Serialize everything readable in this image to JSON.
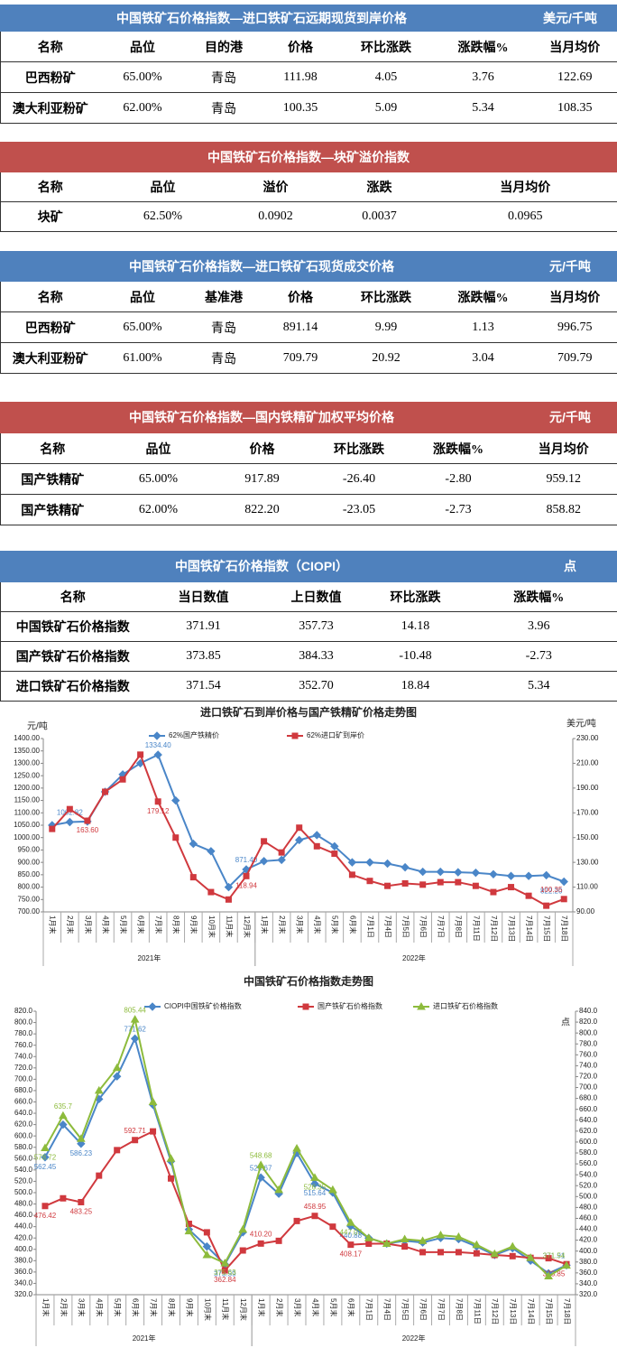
{
  "tables": [
    {
      "title": "中国铁矿石价格指数—进口铁矿石远期现货到岸价格",
      "unit": "美元/千吨",
      "color": "#4f81bd",
      "columns": [
        "名称",
        "品位",
        "目的港",
        "价格",
        "环比涨跌",
        "涨跌幅%",
        "当月均价"
      ],
      "rows": [
        [
          "巴西粉矿",
          "65.00%",
          "青岛",
          "111.98",
          "4.05",
          "3.76",
          "122.69"
        ],
        [
          "澳大利亚粉矿",
          "62.00%",
          "青岛",
          "100.35",
          "5.09",
          "5.34",
          "108.35"
        ]
      ]
    },
    {
      "title": "中国铁矿石价格指数—块矿溢价指数",
      "color": "#c0504d",
      "columns": [
        "名称",
        "品位",
        "溢价",
        "涨跌",
        "当月均价"
      ],
      "rows": [
        [
          "块矿",
          "62.50%",
          "0.0902",
          "0.0037",
          "0.0965"
        ]
      ]
    },
    {
      "title": "中国铁矿石价格指数—进口铁矿石现货成交价格",
      "unit": "元/千吨",
      "color": "#4f81bd",
      "columns": [
        "名称",
        "品位",
        "基准港",
        "价格",
        "环比涨跌",
        "涨跌幅%",
        "当月均价"
      ],
      "rows": [
        [
          "巴西粉矿",
          "65.00%",
          "青岛",
          "891.14",
          "9.99",
          "1.13",
          "996.75"
        ],
        [
          "澳大利亚粉矿",
          "61.00%",
          "青岛",
          "709.79",
          "20.92",
          "3.04",
          "709.79"
        ]
      ]
    },
    {
      "title": "中国铁矿石价格指数—国内铁精矿加权平均价格",
      "unit": "元/千吨",
      "color": "#c0504d",
      "columns": [
        "名称",
        "品位",
        "价格",
        "环比涨跌",
        "涨跌幅%",
        "当月均价"
      ],
      "rows": [
        [
          "国产铁精矿",
          "65.00%",
          "917.89",
          "-26.40",
          "-2.80",
          "959.12"
        ],
        [
          "国产铁精矿",
          "62.00%",
          "822.20",
          "-23.05",
          "-2.73",
          "858.82"
        ]
      ]
    },
    {
      "title": "中国铁矿石价格指数（CIOPI）",
      "unit": "点",
      "color": "#4f81bd",
      "columns": [
        "名称",
        "当日数值",
        "上日数值",
        "环比涨跌",
        "涨跌幅%"
      ],
      "rows": [
        [
          "中国铁矿石价格指数",
          "371.91",
          "357.73",
          "14.18",
          "3.96"
        ],
        [
          "国产铁矿石价格指数",
          "373.85",
          "384.33",
          "-10.48",
          "-2.73"
        ],
        [
          "进口铁矿石价格指数",
          "371.54",
          "352.70",
          "18.84",
          "5.34"
        ]
      ]
    }
  ],
  "chart_data": [
    {
      "type": "line",
      "title": "进口铁矿石到岸价格与国产铁精矿价格走势图",
      "y_label": "元/吨",
      "y2_label": "美元/吨",
      "categories": [
        "1月末",
        "2月末",
        "3月末",
        "4月末",
        "5月末",
        "6月末",
        "7月末",
        "8月末",
        "9月末",
        "10月末",
        "11月末",
        "12月末",
        "1月末",
        "2月末",
        "3月末",
        "4月末",
        "5月末",
        "6月末",
        "7月1日",
        "7月4日",
        "7月5日",
        "7月6日",
        "7月7日",
        "7月8日",
        "7月11日",
        "7月12日",
        "7月13日",
        "7月14日",
        "7月15日",
        "7月18日"
      ],
      "groups": [
        {
          "name": "2021年",
          "count": 12
        },
        {
          "name": "2022年",
          "count": 18
        }
      ],
      "series": [
        {
          "name": "62%国产铁精价",
          "color": "#4a86c8",
          "marker": "diamond",
          "axis": "y",
          "values": [
            1050,
            1062.82,
            1065,
            1185,
            1255,
            1300,
            1334.4,
            1150,
            975,
            945,
            800,
            871.4,
            905,
            910,
            990,
            1010,
            965,
            900,
            900,
            895,
            880,
            862,
            862,
            860,
            858,
            852,
            845,
            845,
            848,
            822.2
          ],
          "value_labels": [
            null,
            "1062.82",
            null,
            null,
            null,
            null,
            "1334.40",
            null,
            null,
            null,
            null,
            "871.40",
            null,
            null,
            null,
            null,
            null,
            null,
            null,
            null,
            null,
            null,
            null,
            null,
            null,
            null,
            null,
            null,
            null,
            "822.20"
          ]
        },
        {
          "name": "62%进口矿到岸价",
          "color": "#d0393e",
          "marker": "square",
          "axis": "y2",
          "values": [
            157,
            173,
            163.6,
            187,
            197,
            217,
            179.12,
            150,
            118,
            106,
            100,
            118.94,
            147,
            138,
            158,
            143,
            137,
            120,
            115,
            111,
            113,
            112,
            114,
            114,
            111,
            106,
            110,
            103,
            95,
            100.35
          ],
          "value_labels": [
            null,
            null,
            "163.60",
            null,
            null,
            null,
            "179.12",
            null,
            null,
            null,
            null,
            "118.94",
            null,
            null,
            null,
            null,
            null,
            null,
            null,
            null,
            null,
            null,
            null,
            null,
            null,
            null,
            null,
            null,
            null,
            "100.35"
          ]
        }
      ],
      "ylim": [
        700,
        1400
      ],
      "yticks": [
        {
          "value": 700,
          "label": "700.00"
        },
        {
          "value": 750,
          "label": "750.00"
        },
        {
          "value": 800,
          "label": "800.00"
        },
        {
          "value": 850,
          "label": "850.00"
        },
        {
          "value": 900,
          "label": "900.00"
        },
        {
          "value": 950,
          "label": "950.00"
        },
        {
          "value": 1000,
          "label": "1000.00"
        },
        {
          "value": 1050,
          "label": "1050.00"
        },
        {
          "value": 1100,
          "label": "1100.00"
        },
        {
          "value": 1150,
          "label": "1150.00"
        },
        {
          "value": 1200,
          "label": "1200.00"
        },
        {
          "value": 1250,
          "label": "1250.00"
        },
        {
          "value": 1300,
          "label": "1300.00"
        },
        {
          "value": 1350,
          "label": "1350.00"
        },
        {
          "value": 1400,
          "label": "1400.00"
        }
      ],
      "y2lim": [
        90,
        230
      ],
      "y2ticks": [
        {
          "value": 90,
          "label": "90.00"
        },
        {
          "value": 110,
          "label": "110.00"
        },
        {
          "value": 130,
          "label": "130.00"
        },
        {
          "value": 150,
          "label": "150.00"
        },
        {
          "value": 170,
          "label": "170.00"
        },
        {
          "value": 190,
          "label": "190.00"
        },
        {
          "value": 210,
          "label": "210.00"
        },
        {
          "value": 230,
          "label": "230.00"
        }
      ],
      "grid": false
    },
    {
      "type": "line",
      "title": "中国铁矿石价格指数走势图",
      "y2_label": "点",
      "categories": [
        "1月末",
        "2月末",
        "3月末",
        "4月末",
        "5月末",
        "6月末",
        "7月末",
        "8月末",
        "9月末",
        "10月末",
        "11月末",
        "12月末",
        "1月末",
        "2月末",
        "3月末",
        "4月末",
        "5月末",
        "6月末",
        "7月1日",
        "7月4日",
        "7月5日",
        "7月6日",
        "7月7日",
        "7月8日",
        "7月11日",
        "7月12日",
        "7月13日",
        "7月14日",
        "7月15日",
        "7月18日"
      ],
      "groups": [
        {
          "name": "2021年",
          "count": 12
        },
        {
          "name": "2022年",
          "count": 18
        }
      ],
      "series": [
        {
          "name": "CIOPI中国铁矿价格指数",
          "color": "#4a86c8",
          "marker": "diamond",
          "axis": "y",
          "values": [
            562.45,
            620,
            586.23,
            665,
            705,
            771.62,
            655,
            555,
            435,
            405,
            373.59,
            430,
            526.67,
            498,
            570,
            515.64,
            500,
            440.88,
            420,
            410,
            415,
            412,
            420,
            418,
            405,
            390,
            402,
            380,
            357.73,
            371.91
          ],
          "value_labels": [
            "562.45",
            null,
            "586.23",
            null,
            null,
            "771.62",
            null,
            null,
            null,
            null,
            "373.59",
            null,
            "526.67",
            null,
            null,
            "515.64",
            null,
            "440.88",
            null,
            null,
            null,
            null,
            null,
            null,
            null,
            null,
            null,
            null,
            null,
            "371.91"
          ]
        },
        {
          "name": "国产铁矿石价格指数",
          "color": "#d0393e",
          "marker": "square",
          "axis": "y",
          "values": [
            476.42,
            490,
            483.25,
            530,
            575,
            592.71,
            608,
            525,
            445,
            430,
            362.84,
            398,
            410.2,
            415,
            450,
            458.95,
            440,
            408.17,
            410,
            410,
            405,
            395,
            395,
            395,
            393,
            390,
            388,
            385,
            384.33,
            373.85
          ],
          "value_labels": [
            "476.42",
            null,
            "483.25",
            null,
            null,
            "592.71",
            null,
            null,
            null,
            null,
            "362.84",
            null,
            "410.20",
            null,
            null,
            "458.95",
            null,
            "408.17",
            null,
            null,
            null,
            null,
            null,
            null,
            null,
            null,
            null,
            null,
            null,
            "373.85"
          ]
        },
        {
          "name": "进口铁矿石价格指数",
          "color": "#8dbb3c",
          "marker": "triangle",
          "axis": "y",
          "values": [
            578.72,
            635.7,
            595,
            680,
            720,
            805.44,
            660,
            560,
            432,
            390,
            375.63,
            435,
            548.68,
            505,
            578,
            526.35,
            505,
            447.07,
            420,
            410,
            418,
            415,
            425,
            422,
            408,
            392,
            405,
            385,
            352.7,
            371.54
          ],
          "value_labels": [
            "578.72",
            "635.7",
            null,
            null,
            null,
            "805.44",
            null,
            null,
            null,
            null,
            "375.63",
            null,
            "548.68",
            null,
            null,
            "526.35",
            null,
            "447.07",
            null,
            null,
            null,
            null,
            null,
            null,
            null,
            null,
            null,
            null,
            null,
            "371.54"
          ]
        }
      ],
      "ylim": [
        320,
        820
      ],
      "yticks": [
        {
          "value": 320,
          "label": "320.0"
        },
        {
          "value": 340,
          "label": "340.0"
        },
        {
          "value": 360,
          "label": "360.0"
        },
        {
          "value": 380,
          "label": "380.0"
        },
        {
          "value": 400,
          "label": "400.0"
        },
        {
          "value": 420,
          "label": "420.0"
        },
        {
          "value": 440,
          "label": "440.0"
        },
        {
          "value": 460,
          "label": "460.0"
        },
        {
          "value": 480,
          "label": "480.0"
        },
        {
          "value": 500,
          "label": "500.0"
        },
        {
          "value": 520,
          "label": "520.0"
        },
        {
          "value": 540,
          "label": "540.0"
        },
        {
          "value": 560,
          "label": "560.0"
        },
        {
          "value": 580,
          "label": "580.0"
        },
        {
          "value": 600,
          "label": "600.0"
        },
        {
          "value": 620,
          "label": "620.0"
        },
        {
          "value": 640,
          "label": "640.0"
        },
        {
          "value": 660,
          "label": "660.0"
        },
        {
          "value": 680,
          "label": "680.0"
        },
        {
          "value": 700,
          "label": "700.0"
        },
        {
          "value": 720,
          "label": "720.0"
        },
        {
          "value": 740,
          "label": "740.0"
        },
        {
          "value": 760,
          "label": "760.0"
        },
        {
          "value": 780,
          "label": "780.0"
        },
        {
          "value": 800,
          "label": "800.0"
        },
        {
          "value": 820,
          "label": "820.0"
        }
      ],
      "y2lim": [
        320,
        840
      ],
      "y2ticks": [
        {
          "value": 320,
          "label": "320.0"
        },
        {
          "value": 340,
          "label": "340.0"
        },
        {
          "value": 360,
          "label": "360.0"
        },
        {
          "value": 380,
          "label": "380.0"
        },
        {
          "value": 400,
          "label": "400.0"
        },
        {
          "value": 420,
          "label": "420.0"
        },
        {
          "value": 440,
          "label": "440.0"
        },
        {
          "value": 460,
          "label": "460.0"
        },
        {
          "value": 480,
          "label": "480.0"
        },
        {
          "value": 500,
          "label": "500.0"
        },
        {
          "value": 520,
          "label": "520.0"
        },
        {
          "value": 540,
          "label": "540.0"
        },
        {
          "value": 560,
          "label": "560.0"
        },
        {
          "value": 580,
          "label": "580.0"
        },
        {
          "value": 600,
          "label": "600.0"
        },
        {
          "value": 620,
          "label": "620.0"
        },
        {
          "value": 640,
          "label": "640.0"
        },
        {
          "value": 660,
          "label": "660.0"
        },
        {
          "value": 680,
          "label": "680.0"
        },
        {
          "value": 700,
          "label": "700.0"
        },
        {
          "value": 720,
          "label": "720.0"
        },
        {
          "value": 740,
          "label": "740.0"
        },
        {
          "value": 760,
          "label": "760.0"
        },
        {
          "value": 780,
          "label": "780.0"
        },
        {
          "value": 800,
          "label": "800.0"
        },
        {
          "value": 820,
          "label": "820.0"
        },
        {
          "value": 840,
          "label": "840.0"
        }
      ],
      "grid": false
    }
  ]
}
